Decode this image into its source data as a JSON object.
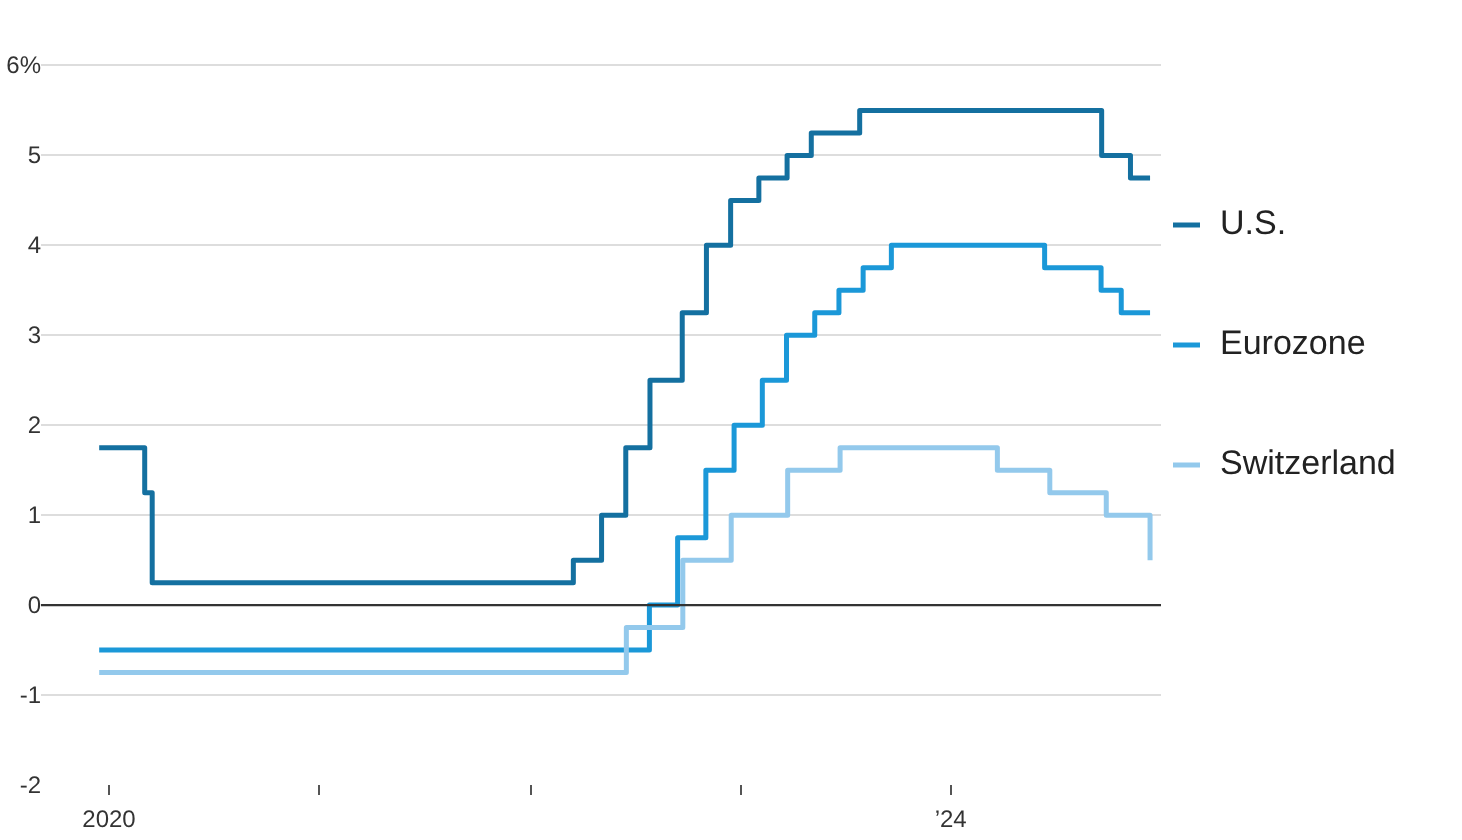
{
  "chart_data": {
    "type": "step",
    "xlim": [
      "2019-09-05",
      "2024-12-31"
    ],
    "ylim": [
      -2,
      6.05
    ],
    "xticks": [
      {
        "value": "2020",
        "label": "2020"
      },
      {
        "value": "2021",
        "label": null
      },
      {
        "value": "2022",
        "label": null
      },
      {
        "value": "2023",
        "label": null
      },
      {
        "value": "2024",
        "label": "’24"
      }
    ],
    "yticks": [
      -2,
      -1,
      0,
      1,
      2,
      3,
      4,
      5,
      {
        "value": 6,
        "label": "6%"
      }
    ],
    "grid": "y",
    "legend": "right",
    "ref_lines": [
      {
        "axis": "y",
        "value": 0,
        "label": null,
        "color": "#333333"
      }
    ],
    "series": [
      {
        "name": "U.S.",
        "color": "#1470a0",
        "x": [
          "2019-12-15",
          "2020-03-03",
          "2020-03-16",
          "2022-03-17",
          "2022-05-05",
          "2022-06-16",
          "2022-07-28",
          "2022-09-22",
          "2022-11-03",
          "2022-12-15",
          "2023-02-02",
          "2023-03-23",
          "2023-05-04",
          "2023-07-27",
          "2024-09-19",
          "2024-11-08",
          "2024-12-12"
        ],
        "values": [
          1.75,
          1.25,
          0.25,
          0.5,
          1.0,
          1.75,
          2.5,
          3.25,
          4.0,
          4.5,
          4.75,
          5.0,
          5.25,
          5.5,
          5.0,
          4.75,
          4.75
        ]
      },
      {
        "name": "Eurozone",
        "color": "#1b98d8",
        "x": [
          "2019-12-15",
          "2022-07-27",
          "2022-09-14",
          "2022-11-02",
          "2022-12-21",
          "2023-02-08",
          "2023-03-22",
          "2023-05-10",
          "2023-06-21",
          "2023-08-02",
          "2023-09-20",
          "2024-06-12",
          "2024-09-18",
          "2024-10-23",
          "2024-12-12"
        ],
        "values": [
          -0.5,
          0,
          0.75,
          1.5,
          2.0,
          2.5,
          3.0,
          3.25,
          3.5,
          3.75,
          4.0,
          3.75,
          3.5,
          3.25,
          3.25
        ]
      },
      {
        "name": "Switzerland",
        "color": "#93c9ec",
        "x": [
          "2019-12-15",
          "2022-06-17",
          "2022-09-23",
          "2022-12-16",
          "2023-03-24",
          "2023-06-23",
          "2024-03-22",
          "2024-06-21",
          "2024-09-27",
          "2024-12-12"
        ],
        "values": [
          -0.75,
          -0.25,
          0.5,
          1.0,
          1.5,
          1.75,
          1.5,
          1.25,
          1.0,
          0.5
        ]
      }
    ]
  }
}
